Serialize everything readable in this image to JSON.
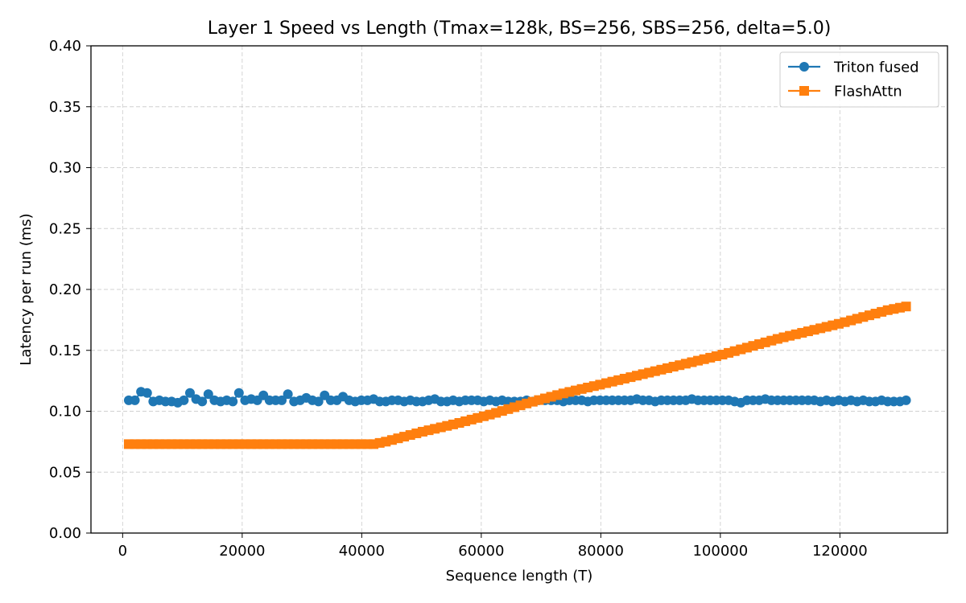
{
  "chart_data": {
    "type": "line",
    "title": "Layer 1 Speed vs Length (Tmax=128k, BS=256, SBS=256, delta=5.0)",
    "xlabel": "Sequence length (T)",
    "ylabel": "Latency per run (ms)",
    "xlim": [
      -5300,
      138000
    ],
    "ylim": [
      0.0,
      0.4
    ],
    "xticks": [
      0,
      20000,
      40000,
      60000,
      80000,
      100000,
      120000
    ],
    "xtick_labels": [
      "0",
      "20000",
      "40000",
      "60000",
      "80000",
      "100000",
      "120000"
    ],
    "yticks": [
      0.0,
      0.05,
      0.1,
      0.15,
      0.2,
      0.25,
      0.3,
      0.35,
      0.4
    ],
    "ytick_labels": [
      "0.00",
      "0.05",
      "0.10",
      "0.15",
      "0.20",
      "0.25",
      "0.30",
      "0.35",
      "0.40"
    ],
    "grid": true,
    "legend_position": "upper right",
    "x_start": 1024,
    "x_step": 1024,
    "num_points": 128,
    "series": [
      {
        "name": "Triton fused",
        "color": "#1f77b4",
        "marker": "circle",
        "values": [
          0.109,
          0.109,
          0.11,
          0.115,
          0.108,
          0.109,
          0.108,
          0.108,
          0.107,
          0.109,
          0.109,
          0.11,
          0.108,
          0.114,
          0.109,
          0.108,
          0.109,
          0.108,
          0.109,
          0.109,
          0.11,
          0.109,
          0.113,
          0.109,
          0.109,
          0.109,
          0.109,
          0.108,
          0.109,
          0.109,
          0.109,
          0.108,
          0.113,
          0.109,
          0.109,
          0.109,
          0.109,
          0.108,
          0.109,
          0.109,
          0.11,
          0.108,
          0.108,
          0.109,
          0.109,
          0.108,
          0.109,
          0.108,
          0.108,
          0.109,
          0.11,
          0.108,
          0.108,
          0.109,
          0.108,
          0.109,
          0.109,
          0.109,
          0.108,
          0.109,
          0.108,
          0.109,
          0.108,
          0.108,
          0.108,
          0.109,
          0.108,
          0.109,
          0.109,
          0.109,
          0.109,
          0.108,
          0.109,
          0.109,
          0.109,
          0.108,
          0.109,
          0.109,
          0.109,
          0.109,
          0.109,
          0.109,
          0.109,
          0.11,
          0.109,
          0.109,
          0.108,
          0.109,
          0.109,
          0.109,
          0.109,
          0.109,
          0.11,
          0.109,
          0.109,
          0.109,
          0.109,
          0.109,
          0.109,
          0.108,
          0.107,
          0.109,
          0.109,
          0.109,
          0.11,
          0.109,
          0.109,
          0.109,
          0.109,
          0.109,
          0.109,
          0.109,
          0.109,
          0.108,
          0.109,
          0.108,
          0.109,
          0.108,
          0.109,
          0.108,
          0.109,
          0.108,
          0.108,
          0.109,
          0.108,
          0.108,
          0.108,
          0.109
        ],
        "spikes": [
          [
            3072,
            0.116
          ],
          [
            11264,
            0.115
          ],
          [
            19456,
            0.115
          ],
          [
            27648,
            0.114
          ],
          [
            30720,
            0.111
          ],
          [
            36864,
            0.112
          ]
        ]
      },
      {
        "name": "FlashAttn",
        "color": "#ff7f0e",
        "marker": "square",
        "values_piecewise": [
          [
            1024,
            0.073
          ],
          [
            42000,
            0.073
          ],
          [
            44000,
            0.075
          ],
          [
            50000,
            0.083
          ],
          [
            56000,
            0.09
          ],
          [
            62000,
            0.098
          ],
          [
            68000,
            0.107
          ],
          [
            74000,
            0.115
          ],
          [
            80000,
            0.122
          ],
          [
            90000,
            0.134
          ],
          [
            100000,
            0.146
          ],
          [
            110000,
            0.16
          ],
          [
            120000,
            0.172
          ],
          [
            128000,
            0.183
          ],
          [
            131072,
            0.186
          ]
        ]
      }
    ]
  }
}
